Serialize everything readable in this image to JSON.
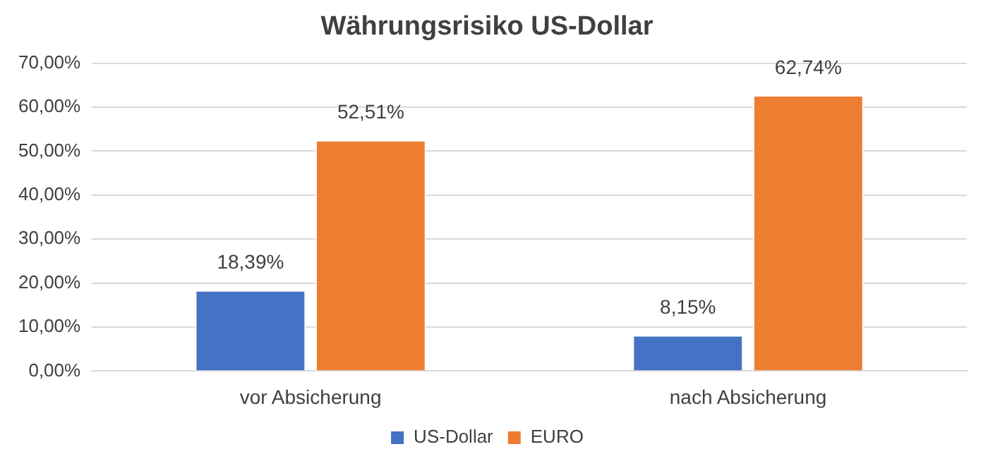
{
  "chart_data": {
    "type": "bar",
    "title": "Währungsrisiko US-Dollar",
    "categories": [
      "vor Absicherung",
      "nach Absicherung"
    ],
    "series": [
      {
        "name": "US-Dollar",
        "color": "#4472c4",
        "values": [
          18.39,
          8.15
        ],
        "value_labels": [
          "18,39%",
          "8,15%"
        ]
      },
      {
        "name": "EURO",
        "color": "#ed7d31",
        "values": [
          52.51,
          62.74
        ],
        "value_labels": [
          "52,51%",
          "62,74%"
        ]
      }
    ],
    "ylim": [
      0,
      70
    ],
    "yticks": [
      {
        "value": 0,
        "label": "0,00%"
      },
      {
        "value": 10,
        "label": "10,00%"
      },
      {
        "value": 20,
        "label": "20,00%"
      },
      {
        "value": 30,
        "label": "30,00%"
      },
      {
        "value": 40,
        "label": "40,00%"
      },
      {
        "value": 50,
        "label": "50,00%"
      },
      {
        "value": 60,
        "label": "60,00%"
      },
      {
        "value": 70,
        "label": "70,00%"
      }
    ],
    "grid": "y",
    "legend": "bottom"
  }
}
